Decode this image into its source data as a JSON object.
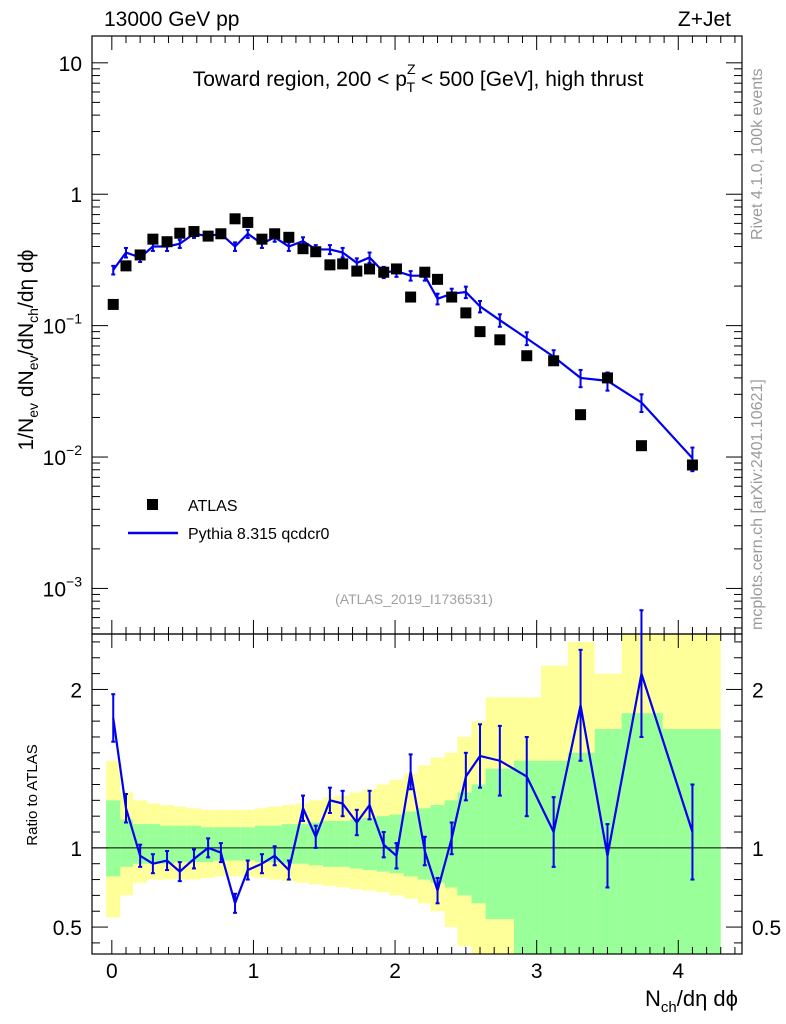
{
  "header": {
    "left": "13000 GeV pp",
    "right": "Z+Jet"
  },
  "side_labels": {
    "rivet": "Rivet 4.1.0,  100k events",
    "mcplots": "mcplots.cern.ch [arXiv:2401.10621]"
  },
  "chart_data": [
    {
      "type": "scatter",
      "title": "Toward region, 200 < p_T^Z < 500 [GeV], high thrust",
      "title_parts": {
        "a": "Toward region, 200 < p",
        "sup": "Z",
        "sub": "T",
        "b": " < 500 [GeV], high thrust"
      },
      "ylabel": "1/N_ev dN_ev/dN_ch/dη dϕ",
      "ylabel_parts": {
        "a": "1/N",
        "s1": "ev",
        "b": " dN",
        "s2": "ev",
        "c": "/dN",
        "s3": "ch",
        "d": "/dη dϕ"
      },
      "yscale": "log",
      "ylim": [
        0.00045,
        16
      ],
      "xlim": [
        -0.14,
        4.45
      ],
      "x_ticks": [
        0,
        1,
        2,
        3,
        4
      ],
      "y_ticks": [
        {
          "value": 10,
          "base": "10",
          "exp": ""
        },
        {
          "value": 1,
          "base": "1",
          "exp": ""
        },
        {
          "value": 0.1,
          "base": "10",
          "exp": "−1"
        },
        {
          "value": 0.01,
          "base": "10",
          "exp": "−2"
        },
        {
          "value": 0.001,
          "base": "10",
          "exp": "−3"
        }
      ],
      "watermark": "(ATLAS_2019_I1736531)",
      "legend": {
        "position": "bottom-left",
        "entries": [
          "ATLAS",
          "Pythia 8.315 qcdcr0"
        ]
      },
      "series": [
        {
          "name": "ATLAS",
          "style": "marker",
          "color": "#000000",
          "x": [
            0.01,
            0.1,
            0.2,
            0.29,
            0.39,
            0.48,
            0.58,
            0.68,
            0.77,
            0.87,
            0.96,
            1.06,
            1.15,
            1.25,
            1.35,
            1.44,
            1.54,
            1.63,
            1.73,
            1.82,
            1.92,
            2.01,
            2.11,
            2.21,
            2.3,
            2.4,
            2.5,
            2.6,
            2.74,
            2.93,
            3.12,
            3.31,
            3.5,
            3.74,
            4.1
          ],
          "y": [
            0.145,
            0.285,
            0.345,
            0.455,
            0.435,
            0.505,
            0.52,
            0.48,
            0.5,
            0.65,
            0.61,
            0.455,
            0.5,
            0.47,
            0.385,
            0.365,
            0.29,
            0.295,
            0.26,
            0.27,
            0.255,
            0.27,
            0.165,
            0.255,
            0.225,
            0.165,
            0.125,
            0.09,
            0.078,
            0.059,
            0.054,
            0.021,
            0.04,
            0.0122,
            0.0087
          ]
        },
        {
          "name": "Pythia 8.315 qcdcr0",
          "style": "line",
          "color": "#0000ee",
          "x": [
            0.01,
            0.1,
            0.2,
            0.29,
            0.39,
            0.48,
            0.58,
            0.68,
            0.77,
            0.87,
            0.96,
            1.06,
            1.15,
            1.25,
            1.35,
            1.44,
            1.54,
            1.63,
            1.73,
            1.82,
            1.92,
            2.01,
            2.11,
            2.21,
            2.3,
            2.4,
            2.5,
            2.6,
            2.74,
            2.93,
            3.12,
            3.31,
            3.5,
            3.74,
            4.1
          ],
          "y": [
            0.265,
            0.36,
            0.33,
            0.4,
            0.4,
            0.42,
            0.5,
            0.48,
            0.5,
            0.4,
            0.5,
            0.42,
            0.47,
            0.4,
            0.44,
            0.38,
            0.38,
            0.36,
            0.3,
            0.33,
            0.255,
            0.26,
            0.24,
            0.24,
            0.16,
            0.175,
            0.18,
            0.14,
            0.11,
            0.08,
            0.058,
            0.04,
            0.038,
            0.026,
            0.0098
          ],
          "yerr": [
            0.02,
            0.03,
            0.025,
            0.03,
            0.03,
            0.03,
            0.035,
            0.035,
            0.035,
            0.03,
            0.035,
            0.03,
            0.035,
            0.03,
            0.03,
            0.03,
            0.03,
            0.03,
            0.025,
            0.03,
            0.025,
            0.025,
            0.02,
            0.02,
            0.015,
            0.016,
            0.018,
            0.014,
            0.012,
            0.009,
            0.007,
            0.006,
            0.006,
            0.004,
            0.002
          ]
        }
      ]
    },
    {
      "type": "scatter",
      "ylabel": "Ratio to ATLAS",
      "ylim": [
        0.33,
        2.35
      ],
      "xlim": [
        -0.14,
        4.45
      ],
      "xlabel": "N_ch/dη dϕ",
      "xlabel_parts": {
        "a": "N",
        "sub": "ch",
        "b": "/dη dϕ"
      },
      "reference_line": 1,
      "y_ticks": [
        {
          "value": 2,
          "label": "2"
        },
        {
          "value": 1,
          "label": "1"
        },
        {
          "value": 0.5,
          "label": "0.5"
        }
      ],
      "x_ticks": [
        {
          "value": 0,
          "label": "0"
        },
        {
          "value": 1,
          "label": "1"
        },
        {
          "value": 2,
          "label": "2"
        },
        {
          "value": 3,
          "label": "3"
        },
        {
          "value": 4,
          "label": "4"
        }
      ],
      "bands": {
        "edges": [
          -0.04,
          0.06,
          0.15,
          0.25,
          0.34,
          0.44,
          0.53,
          0.63,
          0.72,
          0.82,
          0.91,
          1.01,
          1.1,
          1.2,
          1.3,
          1.39,
          1.49,
          1.58,
          1.68,
          1.77,
          1.87,
          1.96,
          2.06,
          2.16,
          2.25,
          2.35,
          2.44,
          2.54,
          2.64,
          2.84,
          3.03,
          3.22,
          3.41,
          3.6,
          3.89,
          4.3
        ],
        "green_low": [
          0.82,
          0.88,
          0.9,
          0.9,
          0.9,
          0.91,
          0.91,
          0.91,
          0.92,
          0.92,
          0.92,
          0.91,
          0.91,
          0.9,
          0.9,
          0.89,
          0.88,
          0.88,
          0.87,
          0.86,
          0.85,
          0.84,
          0.82,
          0.8,
          0.78,
          0.75,
          0.7,
          0.65,
          0.55,
          0.33,
          0.33,
          0.33,
          0.33,
          0.33,
          0.33
        ],
        "green_high": [
          1.3,
          1.18,
          1.15,
          1.15,
          1.14,
          1.14,
          1.14,
          1.13,
          1.13,
          1.13,
          1.13,
          1.14,
          1.14,
          1.15,
          1.15,
          1.16,
          1.17,
          1.17,
          1.18,
          1.19,
          1.2,
          1.21,
          1.23,
          1.25,
          1.27,
          1.3,
          1.35,
          1.4,
          1.5,
          1.55,
          1.55,
          1.6,
          1.75,
          1.85,
          1.75
        ],
        "yellow_low": [
          0.56,
          0.7,
          0.78,
          0.8,
          0.8,
          0.8,
          0.8,
          0.81,
          0.82,
          0.82,
          0.82,
          0.81,
          0.8,
          0.79,
          0.78,
          0.77,
          0.76,
          0.75,
          0.74,
          0.73,
          0.72,
          0.7,
          0.68,
          0.65,
          0.6,
          0.5,
          0.38,
          0.33,
          0.33,
          0.33,
          0.33,
          0.33,
          0.33,
          0.33,
          0.33
        ],
        "yellow_high": [
          1.55,
          1.35,
          1.3,
          1.28,
          1.27,
          1.26,
          1.25,
          1.24,
          1.24,
          1.24,
          1.24,
          1.25,
          1.26,
          1.27,
          1.28,
          1.3,
          1.32,
          1.33,
          1.35,
          1.37,
          1.4,
          1.43,
          1.47,
          1.52,
          1.57,
          1.6,
          1.7,
          1.8,
          1.95,
          1.95,
          2.15,
          2.3,
          2.1,
          2.35,
          2.35
        ]
      },
      "series": [
        {
          "name": "Pythia 8.315 qcdcr0",
          "color": "#0000ee",
          "x": [
            0.01,
            0.1,
            0.2,
            0.29,
            0.39,
            0.48,
            0.58,
            0.68,
            0.77,
            0.87,
            0.96,
            1.06,
            1.15,
            1.25,
            1.35,
            1.44,
            1.54,
            1.63,
            1.73,
            1.82,
            1.92,
            2.01,
            2.11,
            2.21,
            2.3,
            2.4,
            2.5,
            2.6,
            2.74,
            2.93,
            3.12,
            3.31,
            3.5,
            3.74,
            4.1
          ],
          "y": [
            1.82,
            1.25,
            0.95,
            0.9,
            0.92,
            0.85,
            0.93,
            1.0,
            0.97,
            0.65,
            0.86,
            0.9,
            0.95,
            0.86,
            1.25,
            1.07,
            1.3,
            1.28,
            1.16,
            1.27,
            1.02,
            0.95,
            1.48,
            0.98,
            0.73,
            1.06,
            1.45,
            1.58,
            1.55,
            1.45,
            1.1,
            1.9,
            0.95,
            2.1,
            1.1
          ],
          "yerr": [
            0.15,
            0.09,
            0.07,
            0.06,
            0.06,
            0.06,
            0.06,
            0.06,
            0.06,
            0.06,
            0.06,
            0.06,
            0.06,
            0.06,
            0.08,
            0.07,
            0.08,
            0.08,
            0.08,
            0.09,
            0.08,
            0.08,
            0.11,
            0.09,
            0.08,
            0.1,
            0.15,
            0.2,
            0.22,
            0.25,
            0.22,
            0.35,
            0.2,
            0.4,
            0.3
          ]
        }
      ]
    }
  ]
}
